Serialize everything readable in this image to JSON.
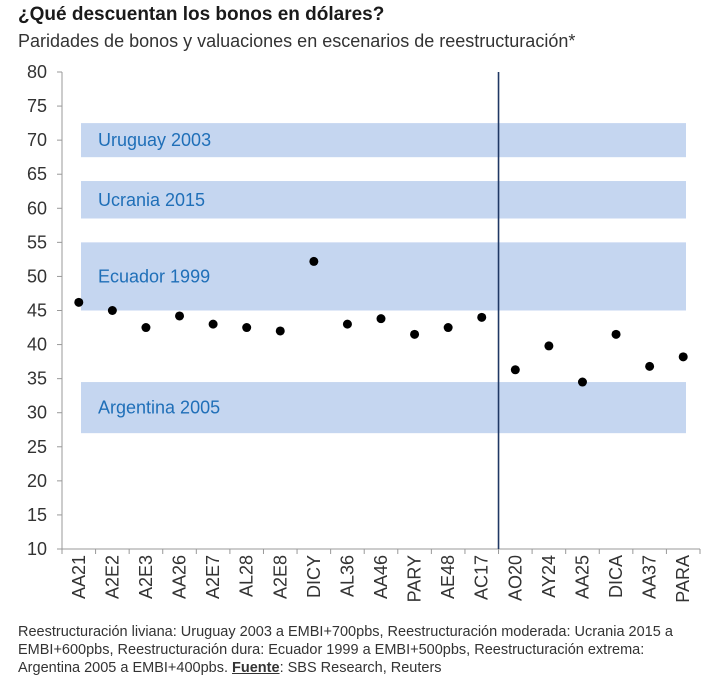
{
  "chart_data": {
    "type": "scatter",
    "title": "¿Qué descuentan los bonos en dólares?",
    "subtitle": "Paridades de bonos y valuaciones en escenarios de reestructuración*",
    "ylim": [
      10,
      80
    ],
    "yticks": [
      10,
      15,
      20,
      25,
      30,
      35,
      40,
      45,
      50,
      55,
      60,
      65,
      70,
      75,
      80
    ],
    "categories": [
      "AA21",
      "A2E2",
      "A2E3",
      "AA26",
      "A2E7",
      "AL28",
      "A2E8",
      "DICY",
      "AL36",
      "AA46",
      "PARY",
      "AE48",
      "AC17",
      "AO20",
      "AY24",
      "AA25",
      "DICA",
      "AA37",
      "PARA"
    ],
    "values": [
      46.2,
      45.0,
      42.5,
      44.2,
      43.0,
      42.5,
      42.0,
      52.2,
      43.0,
      43.8,
      41.5,
      42.5,
      44.0,
      36.3,
      39.8,
      34.5,
      41.5,
      36.8,
      38.2
    ],
    "divider_after_category": "AC17",
    "bands": [
      {
        "name": "Uruguay 2003",
        "low": 67.5,
        "high": 72.5
      },
      {
        "name": "Ucrania 2015",
        "low": 58.5,
        "high": 64.0
      },
      {
        "name": "Ecuador 1999",
        "low": 45.0,
        "high": 55.0
      },
      {
        "name": "Argentina 2005",
        "low": 27.0,
        "high": 34.5
      }
    ],
    "colors": {
      "band": "#c5d6f0",
      "band_label": "#1f6fb8",
      "point": "#000000",
      "divider": "#1f3864",
      "axis": "#999999"
    }
  },
  "footnote": {
    "text": "Reestructuración liviana: Uruguay 2003 a EMBI+700pbs, Reestructuración moderada: Ucrania 2015 a EMBI+600pbs, Reestructuración dura: Ecuador 1999 a EMBI+500pbs, Reestructuración extrema: Argentina 2005 a EMBI+400pbs. ",
    "source_label": "Fuente",
    "source_text": ": SBS Research, Reuters"
  }
}
